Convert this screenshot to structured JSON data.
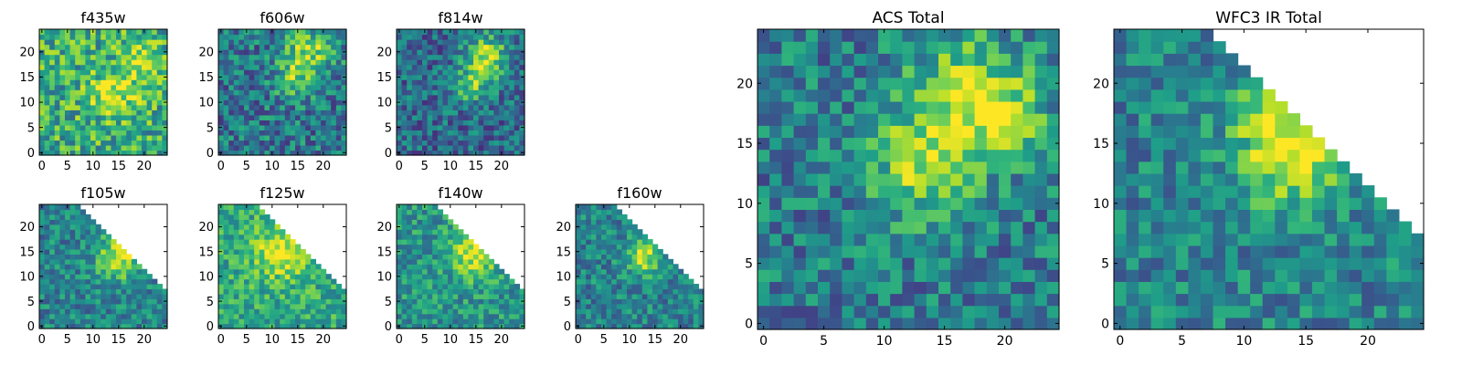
{
  "chart_data": [
    {
      "type": "heatmap",
      "title": "f435w",
      "grid": [
        25,
        25
      ],
      "xlim": [
        0,
        25
      ],
      "ylim": [
        0,
        25
      ],
      "xticks": [
        0,
        5,
        10,
        15,
        20
      ],
      "yticks": [
        0,
        5,
        10,
        15,
        20
      ],
      "pattern": {
        "seed": 11,
        "base": 0.62,
        "noise": 0.55,
        "blobs": [
          [
            14,
            12,
            3.0,
            0.35
          ],
          [
            19,
            18,
            2.5,
            0.35
          ]
        ],
        "mask": "none"
      }
    },
    {
      "type": "heatmap",
      "title": "f606w",
      "grid": [
        25,
        25
      ],
      "xlim": [
        0,
        25
      ],
      "ylim": [
        0,
        25
      ],
      "xticks": [
        0,
        5,
        10,
        15,
        20
      ],
      "yticks": [
        0,
        5,
        10,
        15,
        20
      ],
      "pattern": {
        "seed": 23,
        "base": 0.4,
        "noise": 0.5,
        "blobs": [
          [
            17,
            20,
            3.5,
            0.45
          ],
          [
            14,
            14,
            2.5,
            0.3
          ]
        ],
        "mask": "none"
      }
    },
    {
      "type": "heatmap",
      "title": "f814w",
      "grid": [
        25,
        25
      ],
      "xlim": [
        0,
        25
      ],
      "ylim": [
        0,
        25
      ],
      "xticks": [
        0,
        5,
        10,
        15,
        20
      ],
      "yticks": [
        0,
        5,
        10,
        15,
        20
      ],
      "pattern": {
        "seed": 37,
        "base": 0.35,
        "noise": 0.45,
        "blobs": [
          [
            17,
            19,
            3.0,
            0.55
          ],
          [
            14,
            13,
            2.5,
            0.35
          ]
        ],
        "mask": "none"
      }
    },
    {
      "type": "heatmap",
      "title": "f105w",
      "grid": [
        25,
        25
      ],
      "xlim": [
        0,
        25
      ],
      "ylim": [
        0,
        25
      ],
      "xticks": [
        0,
        5,
        10,
        15,
        20
      ],
      "yticks": [
        0,
        5,
        10,
        15,
        20
      ],
      "pattern": {
        "seed": 41,
        "base": 0.45,
        "noise": 0.4,
        "blobs": [
          [
            15,
            14,
            3.0,
            0.5
          ]
        ],
        "mask": "triangle"
      }
    },
    {
      "type": "heatmap",
      "title": "f125w",
      "grid": [
        25,
        25
      ],
      "xlim": [
        0,
        25
      ],
      "ylim": [
        0,
        25
      ],
      "xticks": [
        0,
        5,
        10,
        15,
        20
      ],
      "yticks": [
        0,
        5,
        10,
        15,
        20
      ],
      "pattern": {
        "seed": 53,
        "base": 0.6,
        "noise": 0.4,
        "blobs": [
          [
            12,
            15,
            4.0,
            0.35
          ]
        ],
        "mask": "triangle"
      }
    },
    {
      "type": "heatmap",
      "title": "f140w",
      "grid": [
        25,
        25
      ],
      "xlim": [
        0,
        25
      ],
      "ylim": [
        0,
        25
      ],
      "xticks": [
        0,
        5,
        10,
        15,
        20
      ],
      "yticks": [
        0,
        5,
        10,
        15,
        20
      ],
      "pattern": {
        "seed": 67,
        "base": 0.52,
        "noise": 0.4,
        "blobs": [
          [
            15,
            15,
            3.5,
            0.45
          ]
        ],
        "mask": "triangle"
      }
    },
    {
      "type": "heatmap",
      "title": "f160w",
      "grid": [
        25,
        25
      ],
      "xlim": [
        0,
        25
      ],
      "ylim": [
        0,
        25
      ],
      "xticks": [
        0,
        5,
        10,
        15,
        20
      ],
      "yticks": [
        0,
        5,
        10,
        15,
        20
      ],
      "pattern": {
        "seed": 79,
        "base": 0.45,
        "noise": 0.4,
        "blobs": [
          [
            13,
            14,
            2.5,
            0.45
          ]
        ],
        "mask": "triangle"
      }
    },
    {
      "type": "heatmap",
      "title": "ACS Total",
      "grid": [
        25,
        25
      ],
      "xlim": [
        0,
        25
      ],
      "ylim": [
        0,
        25
      ],
      "xticks": [
        0,
        5,
        10,
        15,
        20
      ],
      "yticks": [
        0,
        5,
        10,
        15,
        20
      ],
      "pattern": {
        "seed": 97,
        "base": 0.42,
        "noise": 0.45,
        "blobs": [
          [
            17,
            19,
            3.5,
            0.45
          ],
          [
            13,
            13,
            3.0,
            0.4
          ],
          [
            20,
            17,
            2.0,
            0.3
          ]
        ],
        "mask": "none"
      }
    },
    {
      "type": "heatmap",
      "title": "WFC3 IR Total",
      "grid": [
        25,
        25
      ],
      "xlim": [
        0,
        25
      ],
      "ylim": [
        0,
        25
      ],
      "xticks": [
        0,
        5,
        10,
        15,
        20
      ],
      "yticks": [
        0,
        5,
        10,
        15,
        20
      ],
      "pattern": {
        "seed": 113,
        "base": 0.45,
        "noise": 0.4,
        "blobs": [
          [
            14,
            14,
            3.0,
            0.5
          ],
          [
            12,
            18,
            2.0,
            0.3
          ]
        ],
        "mask": "triangle"
      }
    }
  ],
  "colormap": "viridis"
}
